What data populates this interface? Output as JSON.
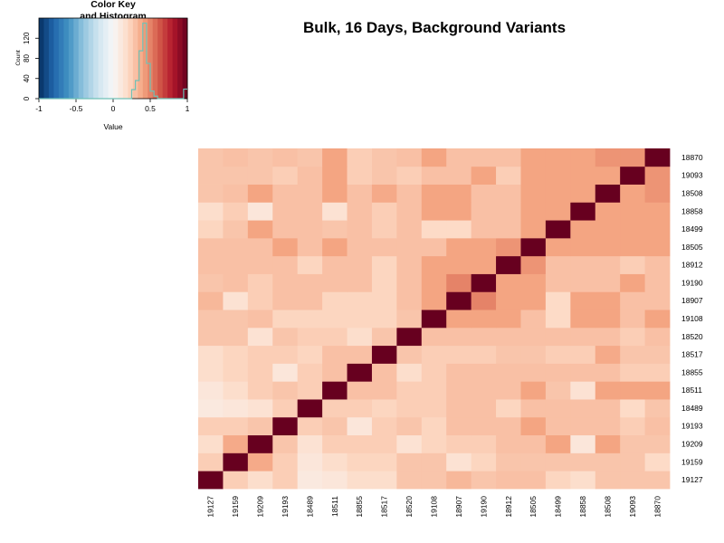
{
  "chart_data": {
    "type": "heatmap",
    "title": "Bulk, 16 Days, Background Variants",
    "labels": [
      "19127",
      "19159",
      "19209",
      "19193",
      "18489",
      "18511",
      "18855",
      "18517",
      "18520",
      "19108",
      "18907",
      "19190",
      "18912",
      "18505",
      "18499",
      "18858",
      "18508",
      "19093",
      "18870"
    ],
    "matrix": [
      [
        1.0,
        0.25,
        0.18,
        0.25,
        0.1,
        0.12,
        0.18,
        0.18,
        0.28,
        0.28,
        0.33,
        0.28,
        0.3,
        0.3,
        0.22,
        0.18,
        0.28,
        0.28,
        0.28
      ],
      [
        0.25,
        1.0,
        0.38,
        0.25,
        0.12,
        0.18,
        0.22,
        0.22,
        0.28,
        0.28,
        0.15,
        0.22,
        0.28,
        0.28,
        0.28,
        0.28,
        0.28,
        0.28,
        0.2
      ],
      [
        0.18,
        0.38,
        1.0,
        0.28,
        0.15,
        0.25,
        0.25,
        0.25,
        0.15,
        0.22,
        0.25,
        0.25,
        0.3,
        0.3,
        0.4,
        0.12,
        0.4,
        0.28,
        0.28
      ],
      [
        0.25,
        0.25,
        0.28,
        1.0,
        0.25,
        0.28,
        0.12,
        0.25,
        0.28,
        0.22,
        0.3,
        0.3,
        0.3,
        0.4,
        0.3,
        0.3,
        0.3,
        0.25,
        0.3
      ],
      [
        0.1,
        0.12,
        0.15,
        0.25,
        1.0,
        0.25,
        0.25,
        0.22,
        0.25,
        0.25,
        0.3,
        0.3,
        0.22,
        0.3,
        0.3,
        0.3,
        0.3,
        0.2,
        0.28
      ],
      [
        0.12,
        0.18,
        0.25,
        0.28,
        0.25,
        1.0,
        0.3,
        0.3,
        0.25,
        0.25,
        0.3,
        0.3,
        0.3,
        0.4,
        0.28,
        0.15,
        0.4,
        0.4,
        0.4
      ],
      [
        0.18,
        0.22,
        0.25,
        0.12,
        0.25,
        0.3,
        1.0,
        0.3,
        0.18,
        0.25,
        0.3,
        0.3,
        0.3,
        0.3,
        0.3,
        0.3,
        0.3,
        0.25,
        0.25
      ],
      [
        0.18,
        0.22,
        0.25,
        0.25,
        0.22,
        0.3,
        0.3,
        1.0,
        0.28,
        0.25,
        0.25,
        0.25,
        0.28,
        0.28,
        0.25,
        0.25,
        0.38,
        0.28,
        0.28
      ],
      [
        0.28,
        0.28,
        0.15,
        0.28,
        0.25,
        0.25,
        0.18,
        0.28,
        1.0,
        0.3,
        0.3,
        0.3,
        0.3,
        0.3,
        0.3,
        0.3,
        0.3,
        0.25,
        0.3
      ],
      [
        0.28,
        0.28,
        0.3,
        0.22,
        0.22,
        0.22,
        0.22,
        0.22,
        0.28,
        1.0,
        0.4,
        0.4,
        0.4,
        0.3,
        0.2,
        0.4,
        0.4,
        0.3,
        0.4
      ],
      [
        0.33,
        0.15,
        0.25,
        0.3,
        0.3,
        0.22,
        0.22,
        0.22,
        0.3,
        0.4,
        1.0,
        0.5,
        0.4,
        0.4,
        0.2,
        0.4,
        0.4,
        0.3,
        0.3
      ],
      [
        0.28,
        0.3,
        0.25,
        0.3,
        0.3,
        0.3,
        0.3,
        0.22,
        0.3,
        0.4,
        0.5,
        1.0,
        0.4,
        0.4,
        0.3,
        0.3,
        0.3,
        0.4,
        0.3
      ],
      [
        0.3,
        0.3,
        0.3,
        0.3,
        0.22,
        0.3,
        0.3,
        0.22,
        0.3,
        0.4,
        0.4,
        0.4,
        1.0,
        0.45,
        0.3,
        0.3,
        0.3,
        0.25,
        0.3
      ],
      [
        0.3,
        0.3,
        0.3,
        0.4,
        0.3,
        0.4,
        0.3,
        0.3,
        0.3,
        0.3,
        0.4,
        0.4,
        0.45,
        1.0,
        0.4,
        0.4,
        0.4,
        0.4,
        0.4
      ],
      [
        0.22,
        0.28,
        0.4,
        0.3,
        0.3,
        0.28,
        0.3,
        0.25,
        0.3,
        0.2,
        0.2,
        0.3,
        0.3,
        0.4,
        1.0,
        0.4,
        0.4,
        0.4,
        0.4
      ],
      [
        0.18,
        0.25,
        0.12,
        0.3,
        0.3,
        0.15,
        0.3,
        0.25,
        0.3,
        0.4,
        0.4,
        0.3,
        0.3,
        0.4,
        0.4,
        1.0,
        0.4,
        0.4,
        0.4
      ],
      [
        0.28,
        0.3,
        0.4,
        0.3,
        0.3,
        0.4,
        0.3,
        0.38,
        0.3,
        0.4,
        0.4,
        0.3,
        0.3,
        0.4,
        0.4,
        0.4,
        1.0,
        0.4,
        0.45
      ],
      [
        0.28,
        0.28,
        0.28,
        0.25,
        0.3,
        0.4,
        0.25,
        0.28,
        0.25,
        0.3,
        0.3,
        0.4,
        0.25,
        0.4,
        0.4,
        0.4,
        0.4,
        1.0,
        0.45
      ],
      [
        0.28,
        0.3,
        0.28,
        0.3,
        0.28,
        0.4,
        0.25,
        0.28,
        0.3,
        0.4,
        0.3,
        0.3,
        0.3,
        0.4,
        0.4,
        0.4,
        0.45,
        0.45,
        1.0
      ]
    ],
    "color_scale": {
      "min": -1,
      "max": 1,
      "colors": [
        "#053061",
        "#2166ac",
        "#4393c3",
        "#92c5de",
        "#d1e5f0",
        "#f7f7f7",
        "#fddbc7",
        "#f4a582",
        "#d6604d",
        "#b2182b",
        "#67001f"
      ]
    },
    "color_key": {
      "title": "Color Key",
      "subtitle": "and Histogram",
      "xlabel": "Value",
      "ylabel": "Count",
      "x_ticks": [
        "-1",
        "-0.5",
        "0",
        "0.5",
        "1"
      ],
      "y_ticks": [
        "0",
        "40",
        "80",
        "120"
      ],
      "histogram": {
        "bins": [
          0.2,
          0.25,
          0.3,
          0.35,
          0.4,
          0.45,
          0.5,
          0.55,
          0.6
        ],
        "counts": [
          0,
          18,
          36,
          95,
          150,
          70,
          15,
          5
        ],
        "max_bin": {
          "edges": [
            0.95,
            1.0
          ],
          "count": 19
        },
        "line_color": "#6fc1b6"
      }
    }
  }
}
